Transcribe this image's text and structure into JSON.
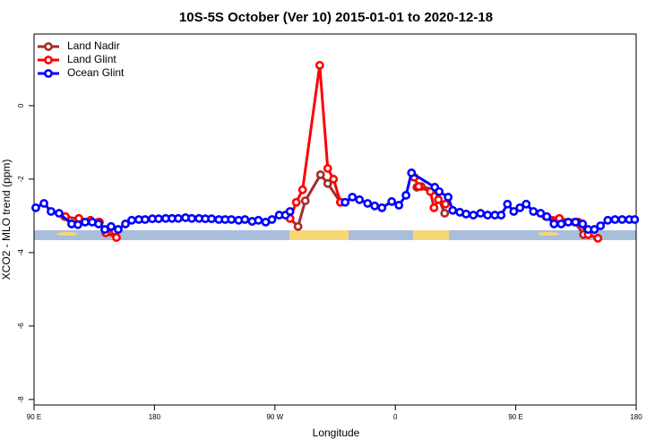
{
  "chart_data": {
    "type": "line",
    "title": "10S-5S October (Ver 10)   2015-01-01 to 2020-12-18",
    "x_label": "Longitude",
    "y_label": "XCO2 - MLO trend (ppm)",
    "xlim": [
      90,
      540
    ],
    "ylim": [
      -8.15,
      1.95
    ],
    "xticks": [
      {
        "value": 90,
        "label": "90 E"
      },
      {
        "value": 180,
        "label": "180"
      },
      {
        "value": 270,
        "label": "90 W"
      },
      {
        "value": 360,
        "label": "0"
      },
      {
        "value": 450,
        "label": "90 E"
      },
      {
        "value": 540,
        "label": "180"
      }
    ],
    "yticks": [
      0,
      -2,
      -4,
      -6,
      -8
    ],
    "legend": "topleft",
    "series": [
      {
        "name": "Land Nadir",
        "color": "#a52a2a",
        "x": [
          112.8,
          138.2,
          143.6,
          150.3,
          200,
          281.3,
          287.3,
          292.7,
          304.1,
          309.5,
          319.0,
          340,
          376.1,
          379.4,
          389.5,
          396.9,
          450,
          472.6,
          482.6,
          494.0,
          500.7
        ],
        "values": [
          -3.02,
          -3.17,
          -3.41,
          -3.41,
          null,
          -3.07,
          -3.29,
          -2.59,
          -1.88,
          -2.12,
          -2.63,
          null,
          -2.22,
          -2.2,
          -2.29,
          -2.93,
          null,
          -3.02,
          -3.17,
          -3.17,
          -3.51
        ]
      },
      {
        "name": "Land Glint",
        "color": "#ff0000",
        "x": [
          113.5,
          118.1,
          123.5,
          132.2,
          138.9,
          143.6,
          151.6,
          200,
          281.3,
          286.0,
          290.7,
          303.5,
          309.5,
          313.8,
          319.0,
          340,
          374.1,
          377.5,
          386.2,
          388.9,
          392.2,
          397.5,
          450,
          473.2,
          482.6,
          496.7,
          504.1,
          511.4
        ],
        "values": [
          -3.02,
          -3.22,
          -3.07,
          -3.12,
          -3.17,
          -3.46,
          -3.59,
          null,
          -3.07,
          -2.63,
          -2.29,
          1.1,
          -1.71,
          -2.0,
          -2.63,
          null,
          -1.95,
          -2.2,
          -2.34,
          -2.78,
          -2.56,
          -2.68,
          null,
          -3.02,
          -3.07,
          -3.17,
          -3.51,
          -3.61
        ]
      },
      {
        "name": "Ocean Glint",
        "color": "#0000ff",
        "x": [
          91.3,
          97.4,
          102.7,
          108.7,
          118.1,
          122.8,
          128.2,
          133.5,
          138.2,
          142.9,
          147.6,
          152.9,
          158.3,
          163.0,
          168.3,
          173.0,
          178.4,
          183.1,
          188.4,
          193.1,
          197.8,
          203.2,
          207.9,
          213.3,
          218.0,
          222.7,
          228.1,
          232.8,
          237.5,
          242.9,
          247.6,
          253.0,
          257.7,
          263.1,
          267.8,
          273.2,
          277.9,
          281.3,
          300,
          322.5,
          327.9,
          333.2,
          339.3,
          344.6,
          350.0,
          357.3,
          362.7,
          368.0,
          372.1,
          389.5,
          392.8,
          399.5,
          402.9,
          408.2,
          412.9,
          418.3,
          423.7,
          429.0,
          434.4,
          439.1,
          443.8,
          448.5,
          453.1,
          457.8,
          463.2,
          468.6,
          473.2,
          478.6,
          484.0,
          489.3,
          494.7,
          500.0,
          504.1,
          508.8,
          513.4,
          518.8,
          524.2,
          529.5,
          534.9,
          538.9
        ],
        "values": [
          -2.78,
          -2.66,
          -2.88,
          -2.93,
          -3.22,
          -3.24,
          -3.17,
          -3.17,
          -3.22,
          -3.37,
          -3.29,
          -3.37,
          -3.22,
          -3.12,
          -3.1,
          -3.1,
          -3.08,
          -3.08,
          -3.07,
          -3.07,
          -3.07,
          -3.05,
          -3.07,
          -3.07,
          -3.08,
          -3.08,
          -3.1,
          -3.1,
          -3.1,
          -3.12,
          -3.1,
          -3.15,
          -3.12,
          -3.17,
          -3.1,
          -2.98,
          -2.98,
          -2.88,
          null,
          -2.63,
          -2.49,
          -2.56,
          -2.66,
          -2.73,
          -2.78,
          -2.61,
          -2.71,
          -2.44,
          -1.83,
          -2.22,
          -2.34,
          -2.49,
          -2.85,
          -2.9,
          -2.95,
          -2.98,
          -2.93,
          -2.98,
          -2.98,
          -2.98,
          -2.68,
          -2.88,
          -2.78,
          -2.68,
          -2.88,
          -2.93,
          -3.02,
          -3.22,
          -3.22,
          -3.17,
          -3.17,
          -3.22,
          -3.37,
          -3.37,
          -3.27,
          -3.12,
          -3.1,
          -3.1,
          -3.1,
          -3.1
        ]
      }
    ]
  }
}
